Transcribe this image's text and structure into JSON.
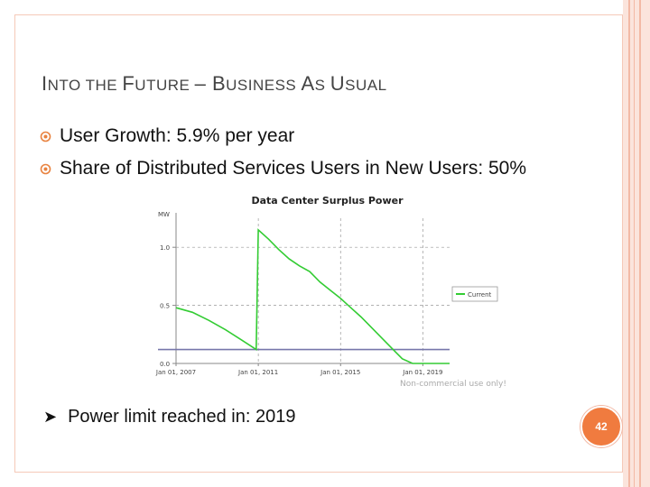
{
  "slide": {
    "title_parts": [
      {
        "text": "I",
        "size": "big"
      },
      {
        "text": "NTO THE ",
        "size": "small"
      },
      {
        "text": "F",
        "size": "big"
      },
      {
        "text": "UTURE ",
        "size": "small"
      },
      {
        "text": "– ",
        "size": "big"
      },
      {
        "text": "B",
        "size": "big"
      },
      {
        "text": "USINESS ",
        "size": "small"
      },
      {
        "text": "A",
        "size": "big"
      },
      {
        "text": "S ",
        "size": "small"
      },
      {
        "text": "U",
        "size": "big"
      },
      {
        "text": "SUAL",
        "size": "small"
      }
    ],
    "bullets": [
      "User Growth: 5.9% per year",
      "Share of Distributed Services Users in New Users: 50%"
    ],
    "bottom_bullet": "Power limit reached in: 2019",
    "page_number": "42",
    "bullet_icon": "bullet-icon",
    "arrow_icon": "arrow-bullet-icon",
    "watermark": "Non-commercial use only!"
  },
  "chart_data": {
    "type": "line",
    "title": "Data Center Surplus Power",
    "ylabel": "MW",
    "xlabel": "",
    "x_ticks": [
      "Jan 01, 2007",
      "Jan 01, 2011",
      "Jan 01, 2015",
      "Jan 01, 2019"
    ],
    "y_ticks": [
      "0.0",
      "0.5",
      "1.0"
    ],
    "xlim": [
      2007.0,
      2020.3
    ],
    "ylim": [
      0.0,
      1.25
    ],
    "grid": true,
    "legend": {
      "position": "right",
      "entries": [
        "Current"
      ]
    },
    "series": [
      {
        "name": "Current",
        "color": "#33cc33",
        "x": [
          2007.0,
          2007.8,
          2008.6,
          2009.4,
          2010.2,
          2010.9,
          2011.0,
          2011.5,
          2012.0,
          2012.5,
          2013.0,
          2013.5,
          2014.0,
          2014.5,
          2015.0,
          2015.5,
          2016.0,
          2016.5,
          2017.0,
          2017.5,
          2018.0,
          2018.5,
          2019.0,
          2019.5,
          2020.3
        ],
        "values": [
          0.48,
          0.44,
          0.37,
          0.29,
          0.2,
          0.12,
          1.15,
          1.07,
          0.98,
          0.9,
          0.84,
          0.79,
          0.7,
          0.63,
          0.56,
          0.48,
          0.4,
          0.31,
          0.22,
          0.13,
          0.04,
          0.0,
          0.0,
          0.0,
          0.0
        ]
      }
    ],
    "reference_line": {
      "value": 0.12,
      "color": "#7777aa"
    }
  }
}
